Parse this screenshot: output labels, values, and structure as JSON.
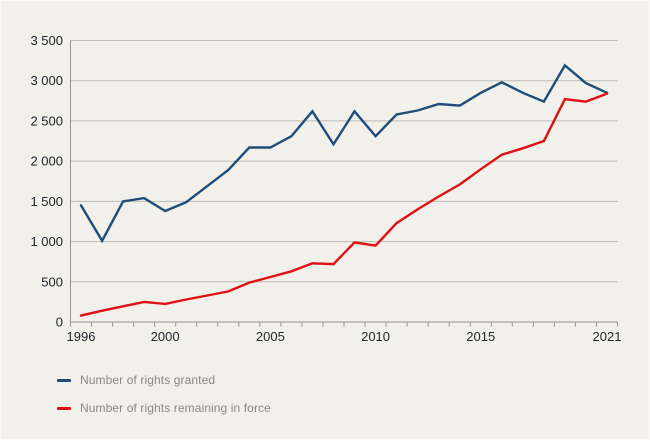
{
  "chart_data": {
    "type": "line",
    "title": "",
    "xlabel": "",
    "ylabel": "",
    "years": [
      1996,
      1997,
      1998,
      1999,
      2000,
      2001,
      2002,
      2003,
      2004,
      2005,
      2006,
      2007,
      2008,
      2009,
      2010,
      2011,
      2012,
      2013,
      2014,
      2015,
      2016,
      2017,
      2018,
      2019,
      2020,
      2021
    ],
    "series": [
      {
        "name": "Number of rights granted",
        "color": "#1e4d7b",
        "values": [
          1450,
          1010,
          1500,
          1540,
          1380,
          1490,
          1690,
          1890,
          2170,
          2170,
          2310,
          2620,
          2210,
          2620,
          2310,
          2580,
          2630,
          2710,
          2690,
          2850,
          2980,
          2850,
          2740,
          3190,
          2970,
          2850
        ]
      },
      {
        "name": "Number of rights remaining in force",
        "color": "#e01014",
        "values": [
          80,
          140,
          195,
          250,
          225,
          280,
          330,
          380,
          490,
          560,
          630,
          730,
          720,
          990,
          950,
          1230,
          1400,
          1560,
          1710,
          1900,
          2080,
          2160,
          2250,
          2770,
          2740,
          2840
        ]
      }
    ],
    "ylim": [
      0,
      3500
    ],
    "ytick_step": 500,
    "ytick_labels": [
      "0",
      "500",
      "1 000",
      "1 500",
      "2 000",
      "2 500",
      "3 000",
      "3 500"
    ],
    "xtick_years": [
      1996,
      2000,
      2005,
      2010,
      2015,
      2021
    ],
    "grid": true,
    "legend_position": "bottom-left"
  },
  "colors": {
    "background": "#f2f0ea",
    "gridline": "#bcbab3",
    "axis": "#96938b",
    "tick_label": "#23242c",
    "legend_text": "#8c8780"
  }
}
